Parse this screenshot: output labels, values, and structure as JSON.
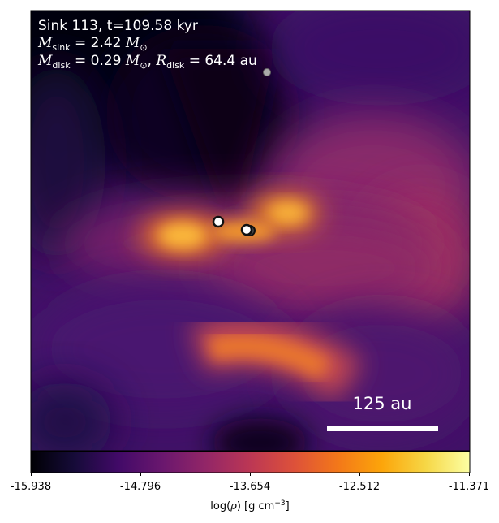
{
  "panel": {
    "title_line1": "Sink 113, t=109.58 kyr",
    "msink_value": "2.42",
    "mdisk_value": "0.29",
    "rdisk_value": "64.4",
    "rdisk_unit": "au"
  },
  "scalebar": {
    "label": "125 au"
  },
  "colorbar": {
    "ticks": [
      "-15.938",
      "-14.796",
      "-13.654",
      "-12.512",
      "-11.371"
    ],
    "label_prefix": "log(",
    "label_rho": "ρ",
    "label_suffix": ") [g cm",
    "label_exp": "−3",
    "label_close": "]",
    "colormap": "inferno"
  },
  "colors": {
    "dark": "#050312",
    "purple": "#4a1370",
    "orange": "#f0801e",
    "yellow": "#fbd23e",
    "scalebar": "#ffffff"
  }
}
